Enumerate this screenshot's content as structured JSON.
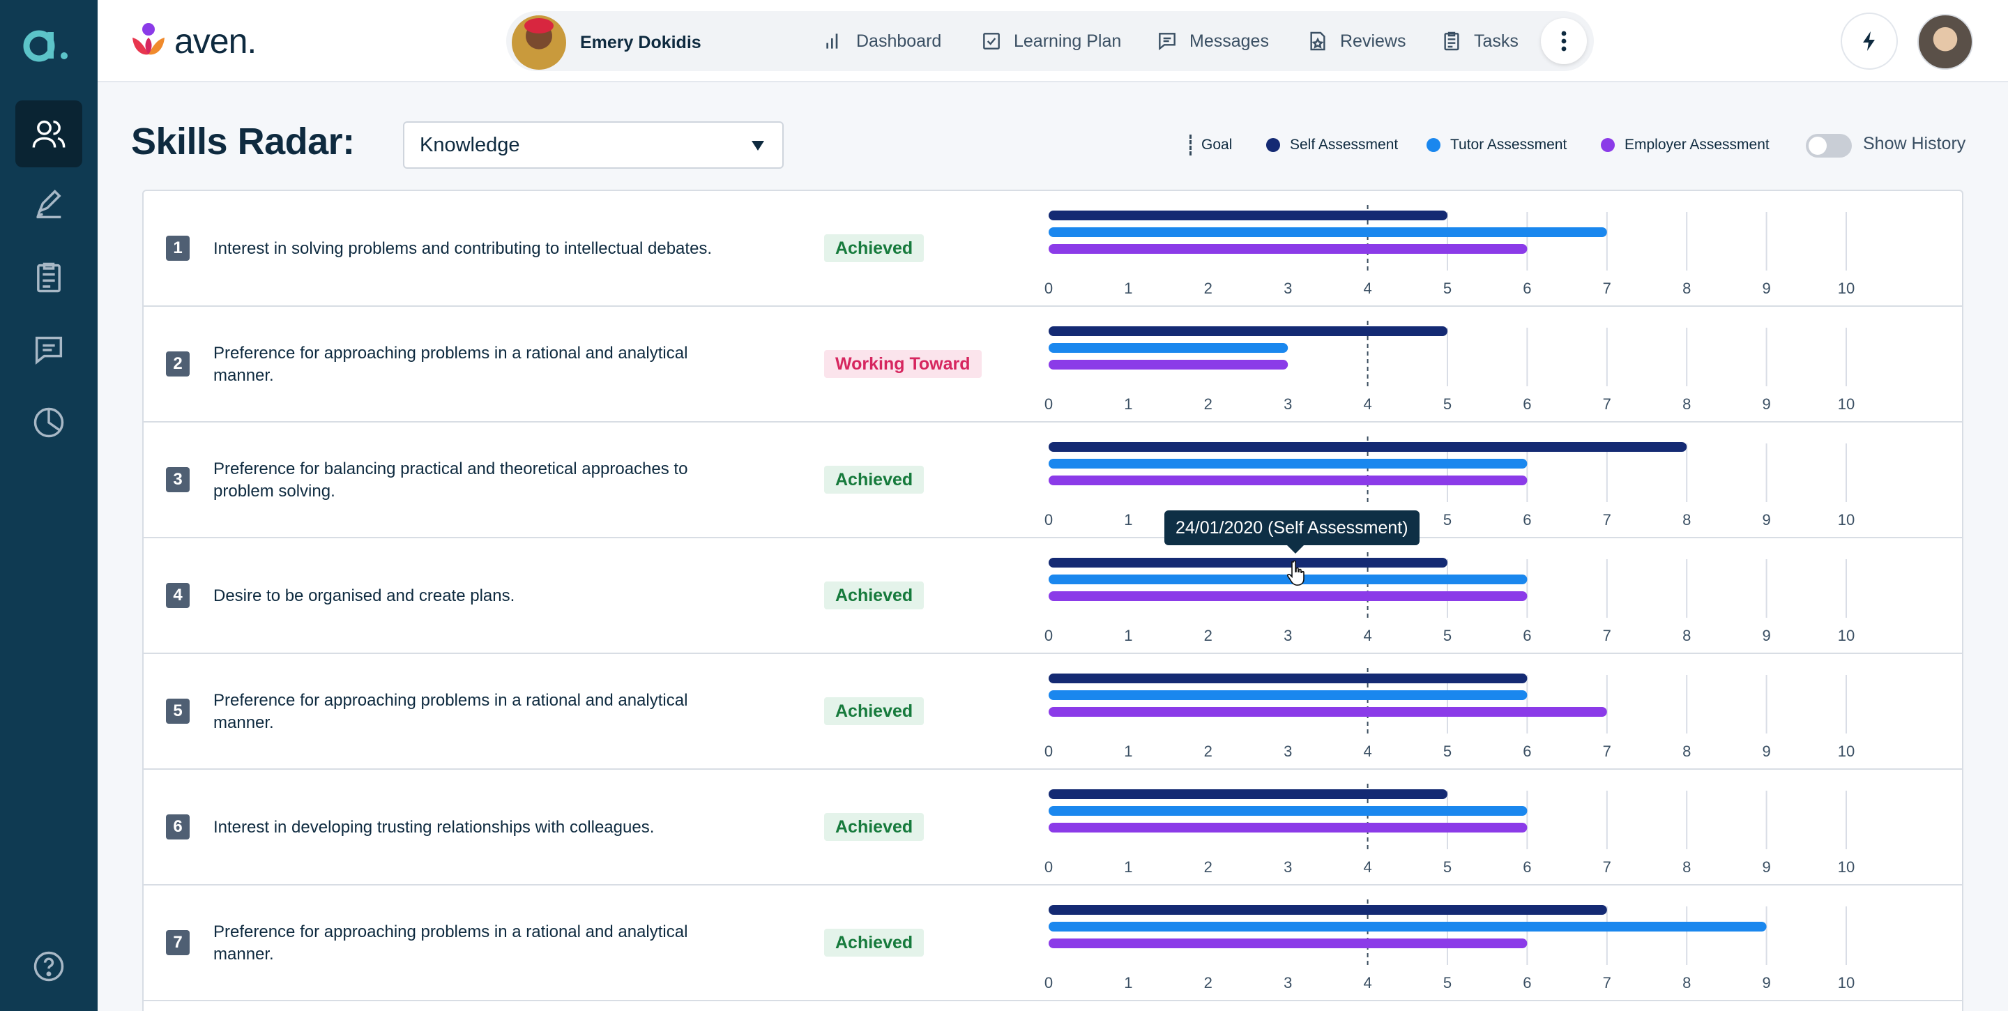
{
  "app": {
    "rail_logo_letter": "a.",
    "brand_name": "aven."
  },
  "sidebar": {
    "items": [
      {
        "name": "people-icon",
        "active": true
      },
      {
        "name": "pen-icon",
        "active": false
      },
      {
        "name": "clipboard-icon",
        "active": false
      },
      {
        "name": "chat-icon",
        "active": false
      },
      {
        "name": "pie-chart-icon",
        "active": false
      }
    ],
    "help_icon": "help-icon"
  },
  "nav": {
    "user_name": "Emery Dokidis",
    "links": [
      {
        "label": "Dashboard",
        "icon": "bar-chart-icon"
      },
      {
        "label": "Learning Plan",
        "icon": "checkbox-icon"
      },
      {
        "label": "Messages",
        "icon": "message-icon"
      },
      {
        "label": "Reviews",
        "icon": "review-icon"
      },
      {
        "label": "Tasks",
        "icon": "tasks-icon"
      }
    ]
  },
  "header": {
    "title": "Skills Radar:",
    "select_value": "Knowledge",
    "legend": {
      "goal": "Goal",
      "self": "Self Assessment",
      "tutor": "Tutor Assessment",
      "employer": "Employer Assessment"
    },
    "show_history": "Show History"
  },
  "colors": {
    "self": "#142a73",
    "tutor": "#1a87ee",
    "employer": "#8b3be8",
    "sidebar": "#0f3a52",
    "achieved": "#167a3c",
    "working": "#d6265f"
  },
  "tooltip": {
    "text": "24/01/2020 (Self Assessment)"
  },
  "chart_data": {
    "type": "bar",
    "orientation": "horizontal",
    "x_ticks": [
      "0",
      "1",
      "2",
      "3",
      "4",
      "5",
      "6",
      "7",
      "8",
      "9",
      "10"
    ],
    "xlim": [
      0,
      10
    ],
    "goal": 4,
    "series_names": [
      "Self Assessment",
      "Tutor Assessment",
      "Employer Assessment"
    ],
    "rows": [
      {
        "num": "1",
        "text": "Interest in solving problems and contributing to intellectual debates.",
        "status": "Achieved",
        "self": 5,
        "tutor": 7,
        "employer": 6
      },
      {
        "num": "2",
        "text": "Preference for approaching problems in a rational and analytical manner.",
        "status": "Working Toward",
        "self": 5,
        "tutor": 3,
        "employer": 3
      },
      {
        "num": "3",
        "text": "Preference for balancing practical and theoretical approaches to problem solving.",
        "status": "Achieved",
        "self": 8,
        "tutor": 6,
        "employer": 6
      },
      {
        "num": "4",
        "text": "Desire to be organised and create plans.",
        "status": "Achieved",
        "self": 5,
        "tutor": 6,
        "employer": 6
      },
      {
        "num": "5",
        "text": "Preference for approaching problems in a rational and analytical manner.",
        "status": "Achieved",
        "self": 6,
        "tutor": 6,
        "employer": 7
      },
      {
        "num": "6",
        "text": "Interest in developing trusting relationships with colleagues.",
        "status": "Achieved",
        "self": 5,
        "tutor": 6,
        "employer": 6
      },
      {
        "num": "7",
        "text": "Preference for approaching problems in a rational and analytical manner.",
        "status": "Achieved",
        "self": 7,
        "tutor": 9,
        "employer": 6
      }
    ]
  }
}
